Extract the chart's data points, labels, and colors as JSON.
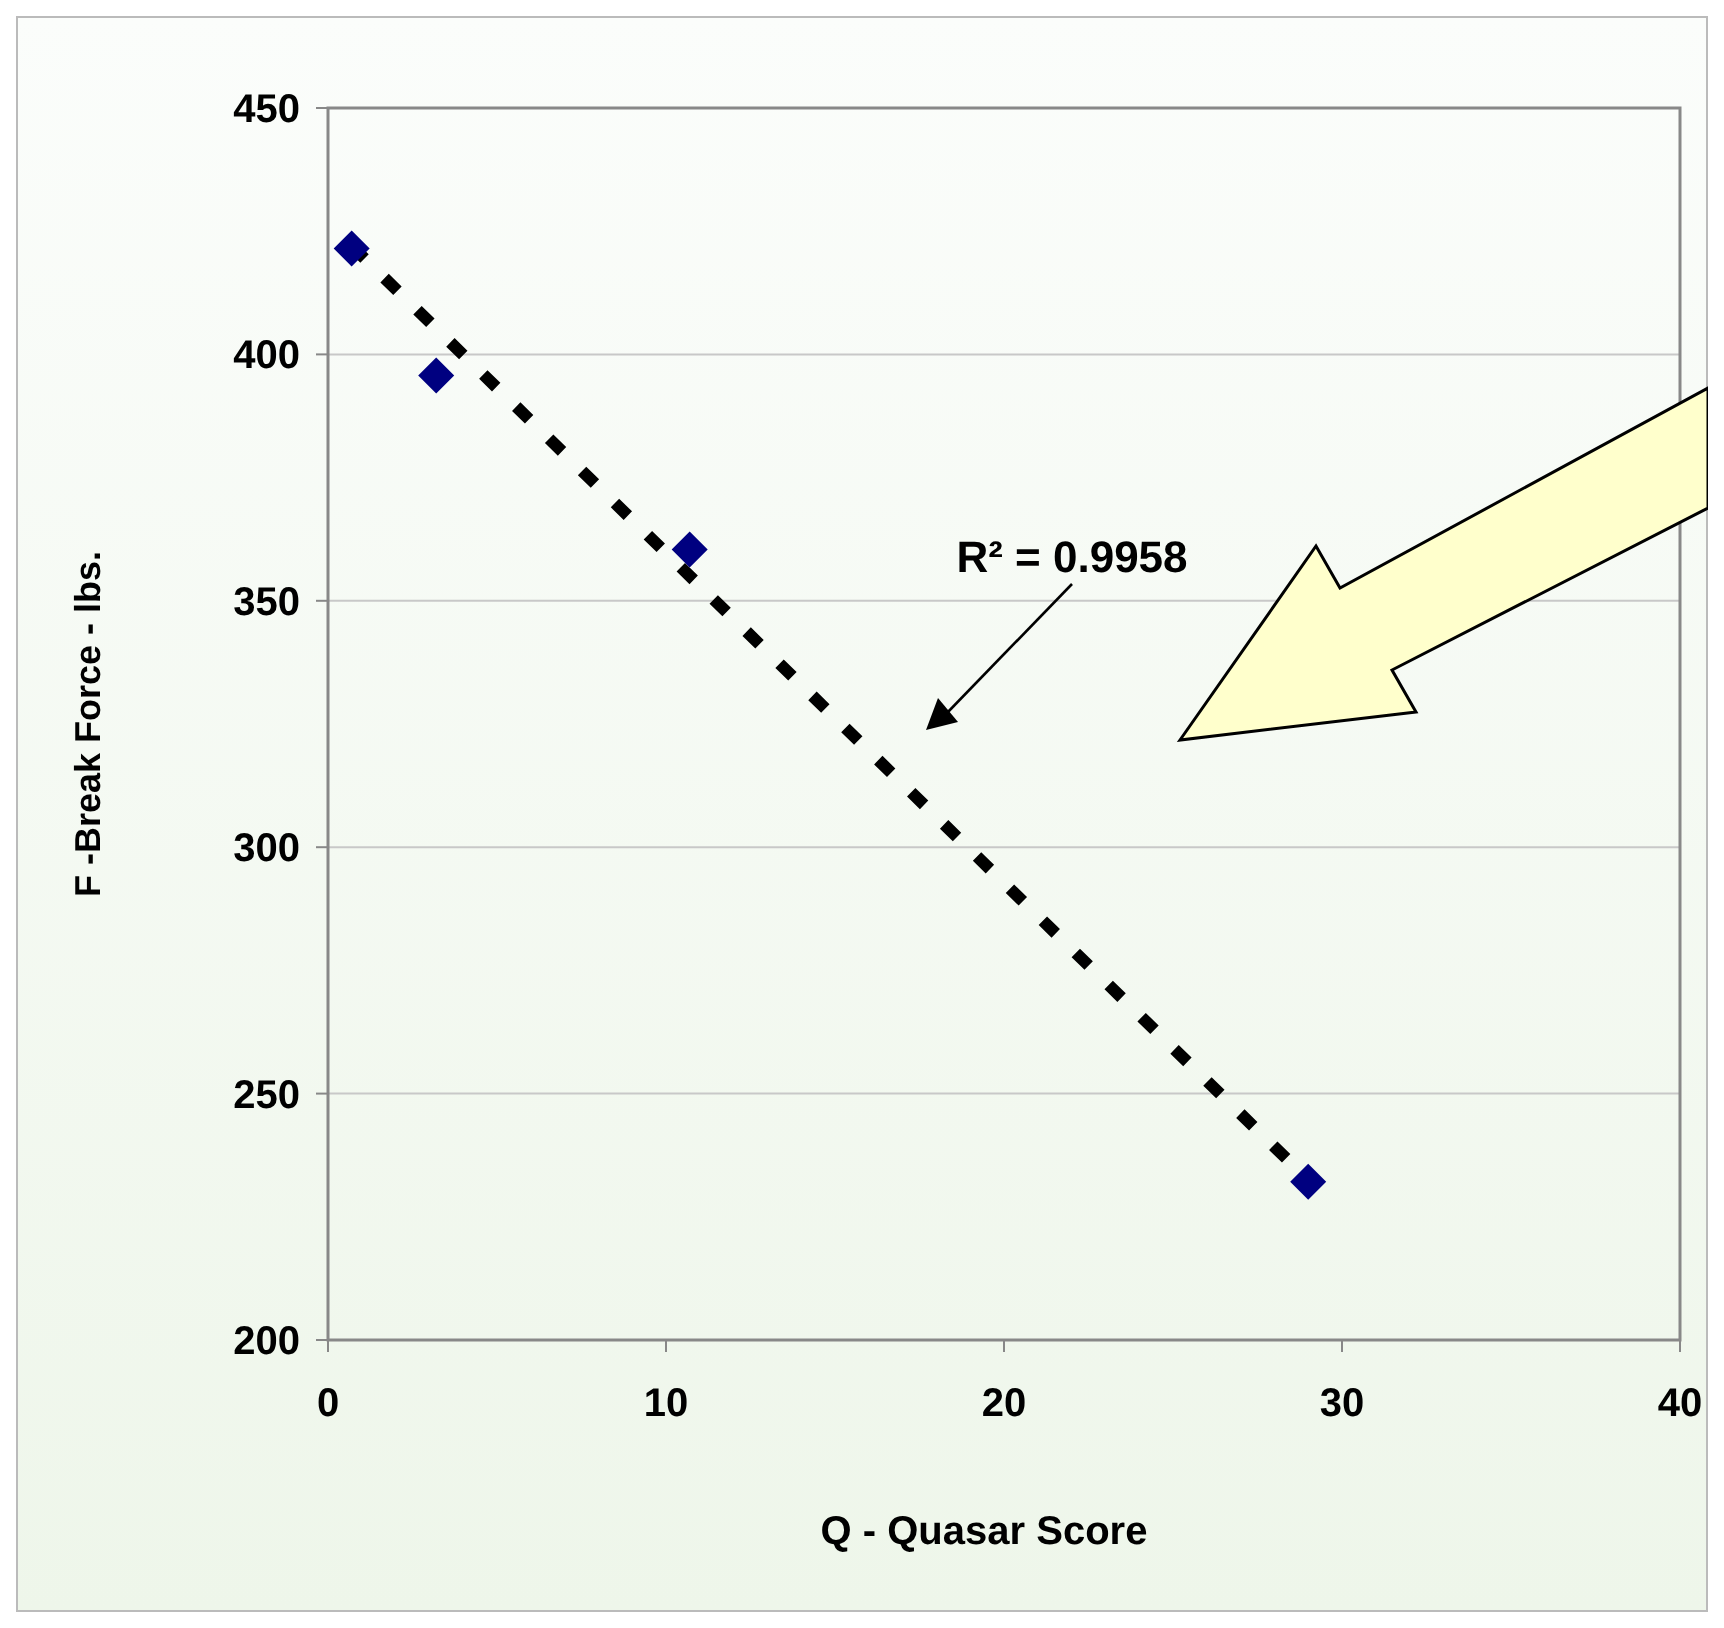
{
  "chart_data": {
    "type": "scatter",
    "xlabel": "Q - Quasar Score",
    "ylabel": "F -Break Force - lbs.",
    "xlim": [
      0,
      40
    ],
    "xticks": [
      0,
      10,
      20,
      30,
      40
    ],
    "ylim": [
      200,
      450
    ],
    "yticks": [
      200,
      250,
      300,
      350,
      400,
      450
    ],
    "grid": "y",
    "series": [
      {
        "color": "#000080",
        "marker": "diamond",
        "x": [
          0.7,
          3.2,
          10.7,
          29.0
        ],
        "values": [
          421.5,
          395.7,
          360.4,
          232.1
        ]
      },
      {
        "type": "line",
        "color": "#000000",
        "line_style": "dashed",
        "x": [
          0.7,
          29.0
        ],
        "values": [
          422,
          232.5
        ]
      }
    ],
    "annotations": [
      "R² = 0.9958"
    ]
  }
}
